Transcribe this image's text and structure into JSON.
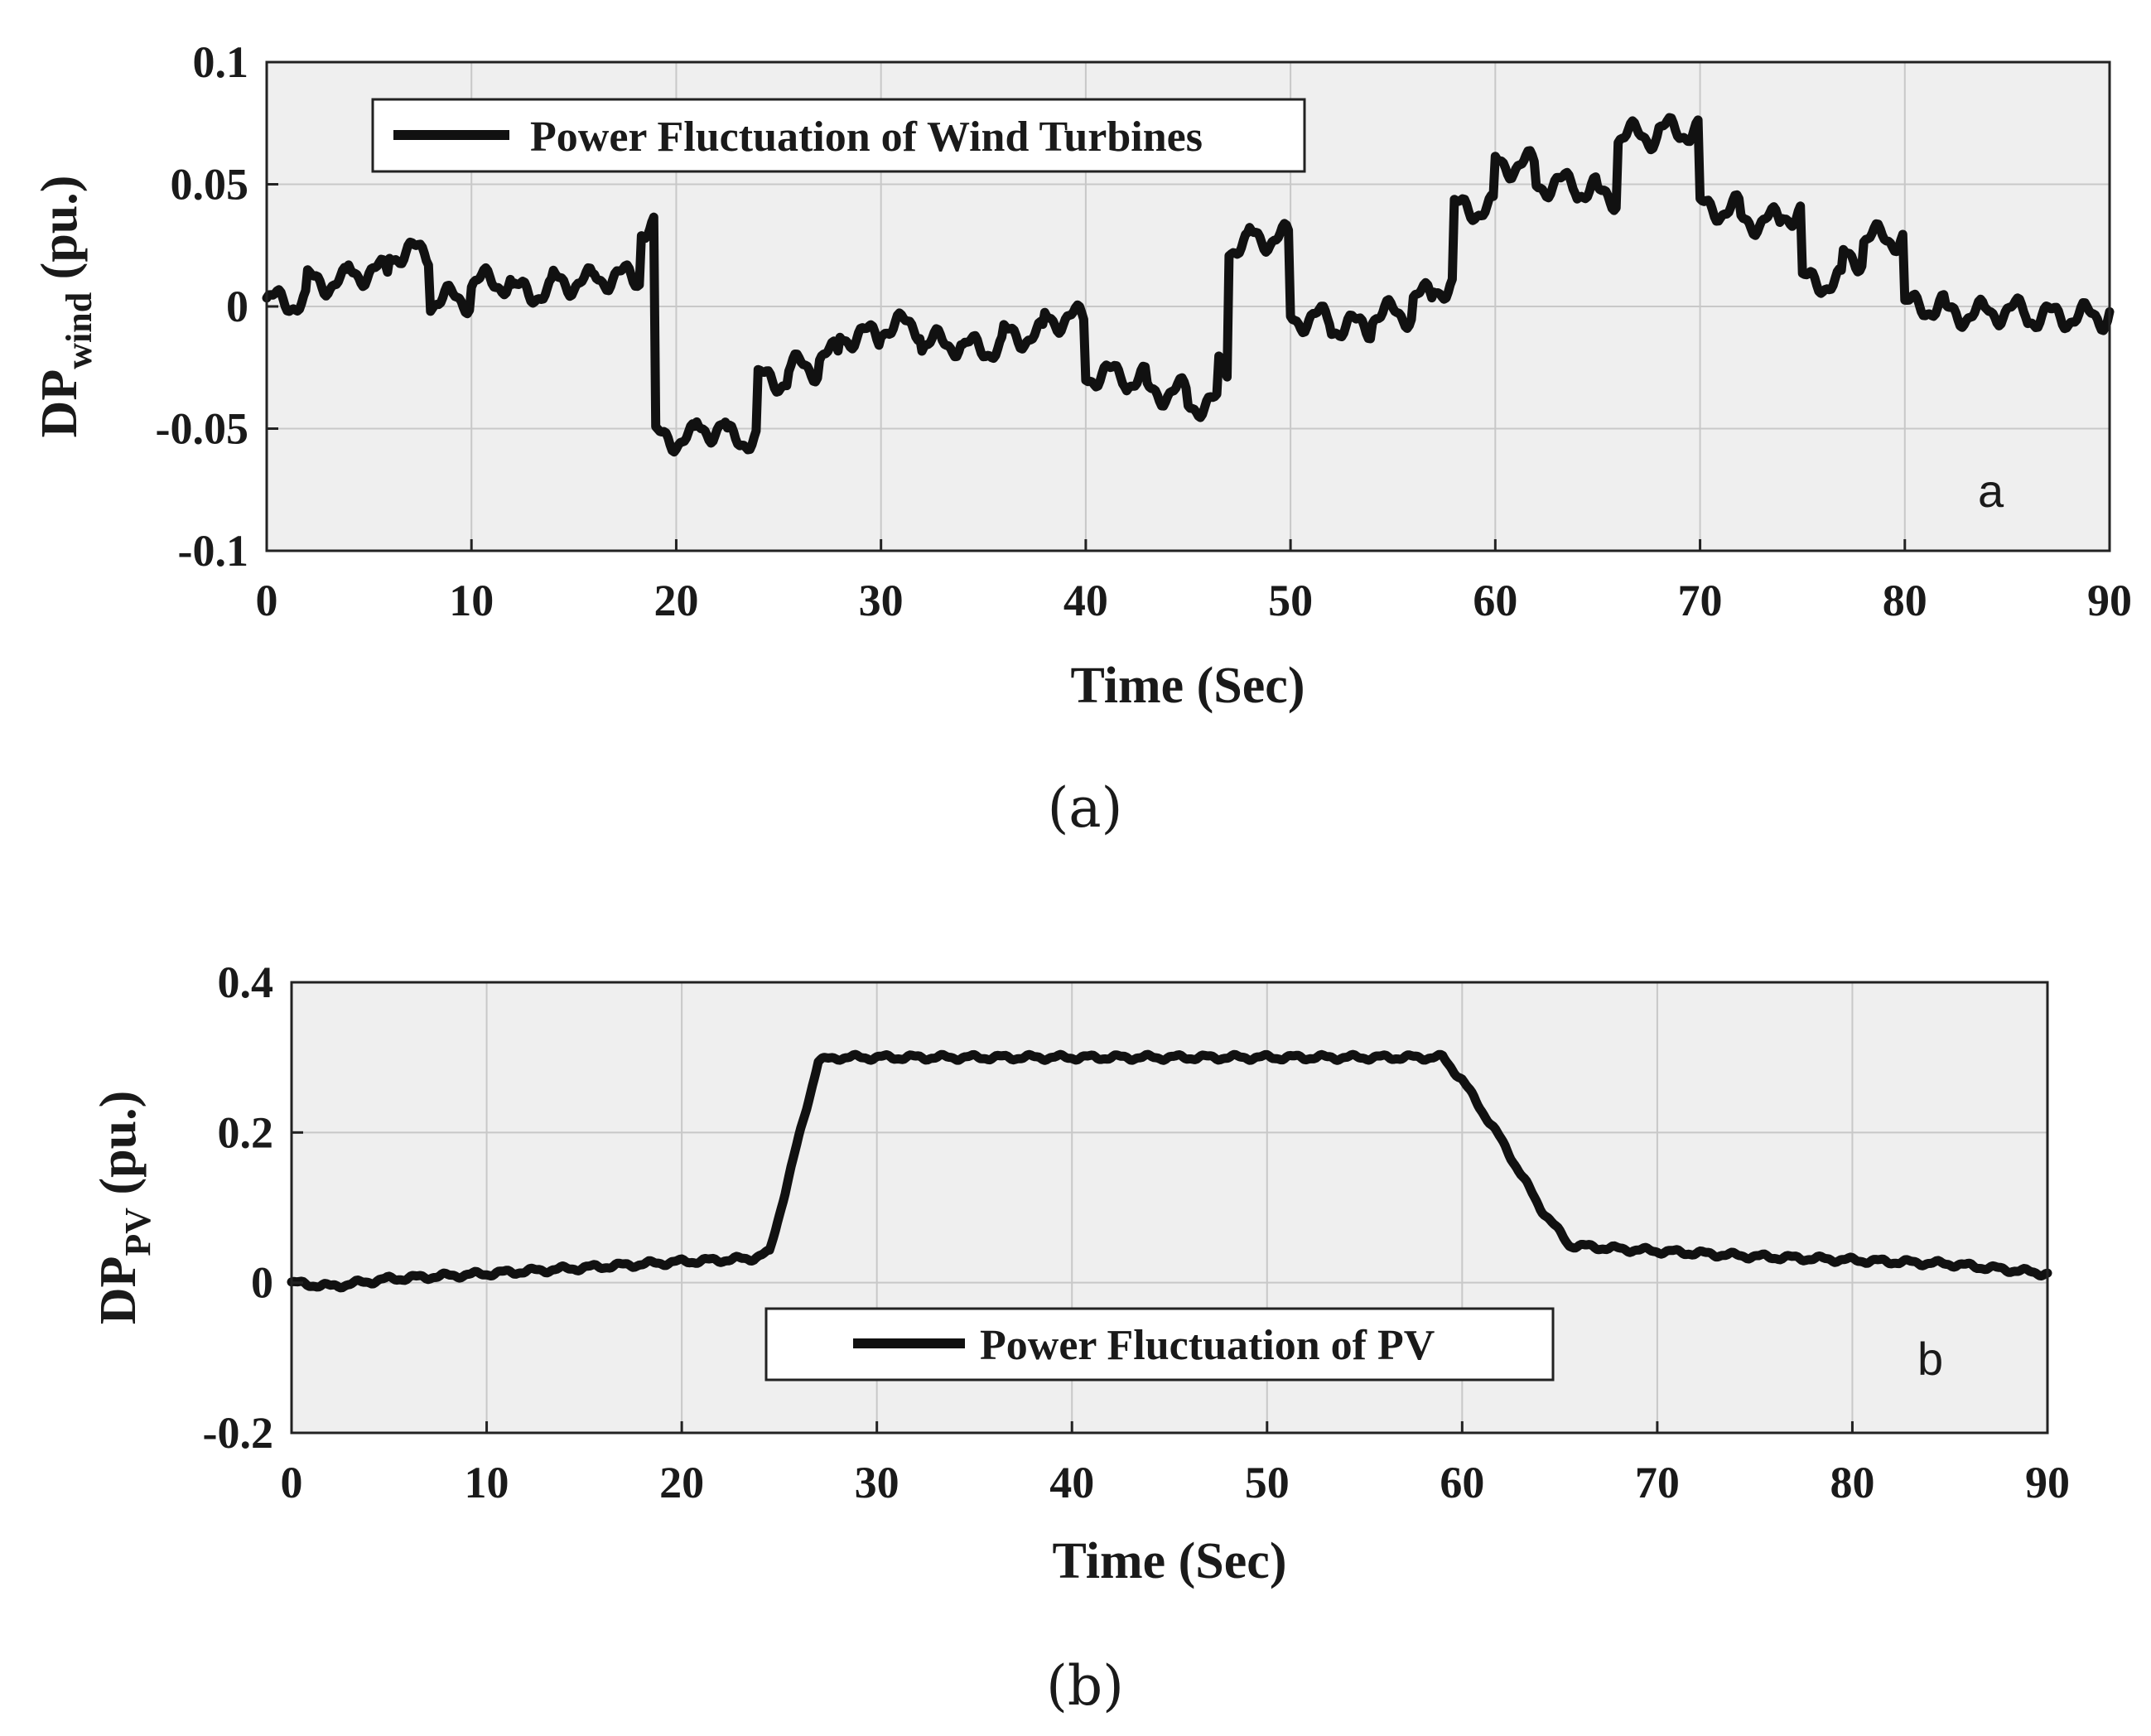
{
  "colors": {
    "plot_bg": "#efefef",
    "grid": "#c8c8c8",
    "line": "#111111",
    "axis": "#222222"
  },
  "chart_data": [
    {
      "type": "line",
      "panel": "a",
      "caption": "(a)",
      "corner_label": "a",
      "xlabel": "Time (Sec)",
      "ylabel": {
        "main": "DP",
        "sub": "wind",
        "unit": " (pu.)"
      },
      "xlim": [
        0,
        90
      ],
      "ylim": [
        -0.1,
        0.1
      ],
      "xticks": [
        0,
        10,
        20,
        30,
        40,
        50,
        60,
        70,
        80,
        90
      ],
      "yticks": [
        -0.1,
        -0.05,
        0,
        0.05,
        0.1
      ],
      "ytick_labels": [
        "-0.1",
        "-0.05",
        "0",
        "0.05",
        "0.1"
      ],
      "legend": {
        "label": "Power Fluctuation of Wind Turbines",
        "position": "top-left"
      },
      "series": [
        {
          "name": "Power Fluctuation of Wind Turbines",
          "noise_amplitude": 0.006,
          "noise_period": 1.7,
          "levels": [
            [
              0,
              0.002
            ],
            [
              2,
              0.01
            ],
            [
              4,
              0.014
            ],
            [
              6,
              0.022
            ],
            [
              8,
              0.003
            ],
            [
              10,
              0.01
            ],
            [
              12,
              0.006
            ],
            [
              14,
              0.01
            ],
            [
              16,
              0.012
            ],
            [
              18.3,
              0.032
            ],
            [
              19,
              -0.054
            ],
            [
              21,
              -0.05
            ],
            [
              22.5,
              -0.054
            ],
            [
              24,
              -0.03
            ],
            [
              25.5,
              -0.025
            ],
            [
              27,
              -0.02
            ],
            [
              28,
              -0.012
            ],
            [
              30,
              -0.008
            ],
            [
              32,
              -0.015
            ],
            [
              34,
              -0.017
            ],
            [
              36,
              -0.012
            ],
            [
              38,
              -0.005
            ],
            [
              40,
              -0.028
            ],
            [
              42,
              -0.03
            ],
            [
              43,
              -0.035
            ],
            [
              45,
              -0.04
            ],
            [
              46.5,
              -0.025
            ],
            [
              47,
              0.025
            ],
            [
              48,
              0.028
            ],
            [
              50,
              -0.005
            ],
            [
              52,
              -0.008
            ],
            [
              54,
              -0.003
            ],
            [
              56,
              0.004
            ],
            [
              57,
              0.008
            ],
            [
              58,
              0.04
            ],
            [
              60,
              0.058
            ],
            [
              62,
              0.05
            ],
            [
              64,
              0.048
            ],
            [
              65,
              0.045
            ],
            [
              66,
              0.07
            ],
            [
              68,
              0.072
            ],
            [
              70,
              0.04
            ],
            [
              72,
              0.035
            ],
            [
              74,
              0.038
            ],
            [
              75,
              0.01
            ],
            [
              77,
              0.02
            ],
            [
              78,
              0.028
            ],
            [
              80,
              0.0
            ],
            [
              82,
              -0.003
            ],
            [
              84,
              -0.002
            ],
            [
              86,
              -0.004
            ],
            [
              88,
              -0.004
            ],
            [
              90,
              -0.002
            ]
          ]
        }
      ]
    },
    {
      "type": "line",
      "panel": "b",
      "caption": "(b)",
      "corner_label": "b",
      "xlabel": "Time (Sec)",
      "ylabel": {
        "main": "DP",
        "sub": "PV",
        "unit": " (pu.)"
      },
      "xlim": [
        0,
        90
      ],
      "ylim": [
        -0.2,
        0.4
      ],
      "xticks": [
        0,
        10,
        20,
        30,
        40,
        50,
        60,
        70,
        80,
        90
      ],
      "yticks": [
        -0.2,
        0,
        0.2,
        0.4
      ],
      "ytick_labels": [
        "-0.2",
        "0",
        "0.2",
        "0.4"
      ],
      "legend": {
        "label": "Power Fluctuation of PV",
        "position": "lower-center"
      },
      "series": [
        {
          "name": "Power Fluctuation of PV",
          "noise_amplitude": 0.004,
          "noise_period": 1.5,
          "points": [
            [
              0,
              0.0
            ],
            [
              2,
              -0.005
            ],
            [
              5,
              0.005
            ],
            [
              10,
              0.012
            ],
            [
              15,
              0.02
            ],
            [
              20,
              0.028
            ],
            [
              23.5,
              0.032
            ],
            [
              24.5,
              0.04
            ],
            [
              27,
              0.295
            ],
            [
              28,
              0.3
            ],
            [
              59,
              0.3
            ],
            [
              60,
              0.27
            ],
            [
              62,
              0.19
            ],
            [
              64,
              0.1
            ],
            [
              65.5,
              0.05
            ],
            [
              68,
              0.045
            ],
            [
              75,
              0.035
            ],
            [
              80,
              0.03
            ],
            [
              85,
              0.025
            ],
            [
              90,
              0.012
            ]
          ]
        }
      ]
    }
  ]
}
